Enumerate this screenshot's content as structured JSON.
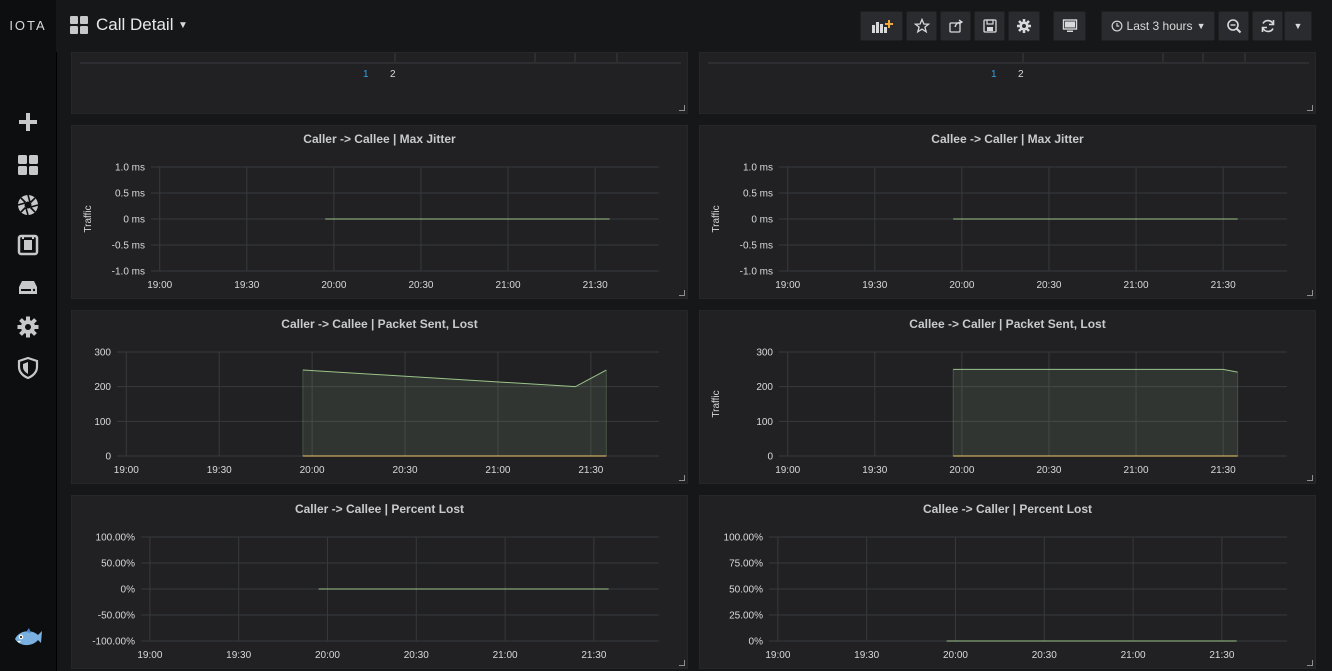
{
  "app": {
    "logo_text": "IOTA"
  },
  "header": {
    "title": "Call Detail",
    "time_range": "Last 3 hours"
  },
  "sidebar": {
    "items": [
      "plus-icon",
      "dashboards-icon",
      "explore-icon",
      "alerting-icon",
      "server-icon",
      "gear-icon",
      "shield-icon"
    ]
  },
  "table_panels": [
    {
      "pages": [
        "1",
        "2"
      ],
      "active_page": "1"
    },
    {
      "pages": [
        "1",
        "2"
      ],
      "active_page": "1"
    }
  ],
  "colors": {
    "series_green": "#9ac48a",
    "series_yellow": "#f2c96d",
    "active_page": "#33a2e5"
  },
  "chart_data": [
    {
      "type": "line",
      "title": "Caller -> Callee | Max Jitter",
      "ylabel": "Traffic",
      "x_ticks": [
        "19:00",
        "19:30",
        "20:00",
        "20:30",
        "21:00",
        "21:30"
      ],
      "y_ticks": [
        "1.0 ms",
        "0.5 ms",
        "0 ms",
        "-0.5 ms",
        "-1.0 ms"
      ],
      "ylim": [
        -1,
        1
      ],
      "series": [
        {
          "x": [
            "19:57",
            "21:35"
          ],
          "values": [
            0,
            0
          ]
        }
      ]
    },
    {
      "type": "line",
      "title": "Callee -> Caller | Max Jitter",
      "ylabel": "Traffic",
      "x_ticks": [
        "19:00",
        "19:30",
        "20:00",
        "20:30",
        "21:00",
        "21:30"
      ],
      "y_ticks": [
        "1.0 ms",
        "0.5 ms",
        "0 ms",
        "-0.5 ms",
        "-1.0 ms"
      ],
      "ylim": [
        -1,
        1
      ],
      "series": [
        {
          "x": [
            "19:57",
            "21:35"
          ],
          "values": [
            0,
            0
          ]
        }
      ]
    },
    {
      "type": "area",
      "title": "Caller -> Callee | Packet Sent, Lost",
      "ylabel": "",
      "x_ticks": [
        "19:00",
        "19:30",
        "20:00",
        "20:30",
        "21:00",
        "21:30"
      ],
      "y_ticks": [
        "300",
        "200",
        "100",
        "0"
      ],
      "ylim": [
        0,
        300
      ],
      "series": [
        {
          "x": [
            "19:57",
            "21:25",
            "21:35"
          ],
          "values": [
            248,
            200,
            248
          ]
        },
        {
          "x": [
            "19:57",
            "21:35"
          ],
          "values": [
            0,
            0
          ]
        }
      ]
    },
    {
      "type": "area",
      "title": "Callee -> Caller | Packet Sent, Lost",
      "ylabel": "Traffic",
      "x_ticks": [
        "19:00",
        "19:30",
        "20:00",
        "20:30",
        "21:00",
        "21:30"
      ],
      "y_ticks": [
        "300",
        "200",
        "100",
        "0"
      ],
      "ylim": [
        0,
        300
      ],
      "series": [
        {
          "x": [
            "19:57",
            "21:30",
            "21:35"
          ],
          "values": [
            250,
            250,
            242
          ]
        },
        {
          "x": [
            "19:57",
            "21:35"
          ],
          "values": [
            0,
            0
          ]
        }
      ]
    },
    {
      "type": "line",
      "title": "Caller -> Callee | Percent Lost",
      "ylabel": "",
      "x_ticks": [
        "19:00",
        "19:30",
        "20:00",
        "20:30",
        "21:00",
        "21:30"
      ],
      "y_ticks": [
        "100.00%",
        "50.00%",
        "0%",
        "-50.00%",
        "-100.00%"
      ],
      "ylim": [
        -100,
        100
      ],
      "series": [
        {
          "x": [
            "19:57",
            "21:35"
          ],
          "values": [
            0,
            0
          ]
        }
      ]
    },
    {
      "type": "line",
      "title": "Callee -> Caller | Percent Lost",
      "ylabel": "",
      "x_ticks": [
        "19:00",
        "19:30",
        "20:00",
        "20:30",
        "21:00",
        "21:30"
      ],
      "y_ticks": [
        "100.00%",
        "75.00%",
        "50.00%",
        "25.00%",
        "0%"
      ],
      "ylim": [
        0,
        100
      ],
      "series": [
        {
          "x": [
            "19:57",
            "21:35"
          ],
          "values": [
            0,
            0
          ]
        }
      ]
    }
  ]
}
